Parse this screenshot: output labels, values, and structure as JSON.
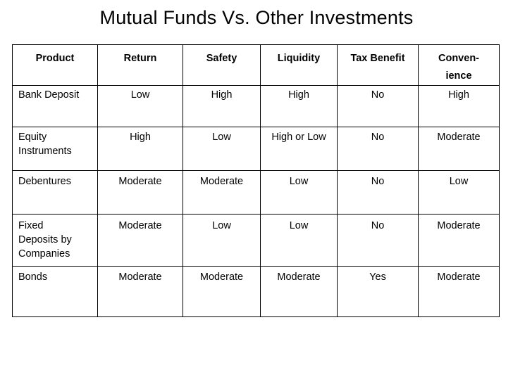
{
  "title": "Mutual Funds Vs. Other Investments",
  "headers": [
    "Product",
    "Return",
    "Safety",
    "Liquidity",
    "Tax Benefit",
    "Conven-\nience"
  ],
  "rows": [
    [
      "Bank Deposit",
      "Low",
      "High",
      "High",
      "No",
      "High"
    ],
    [
      "Equity Instruments",
      "High",
      "Low",
      "High or Low",
      "No",
      "Moderate"
    ],
    [
      "Debentures",
      "Moderate",
      "Moderate",
      "Low",
      "No",
      "Low"
    ],
    [
      "Fixed Deposits by Companies",
      "Moderate",
      "Low",
      "Low",
      "No",
      "Moderate"
    ],
    [
      "Bonds",
      "Moderate",
      "Moderate",
      "Moderate",
      "Yes",
      "Moderate"
    ]
  ]
}
